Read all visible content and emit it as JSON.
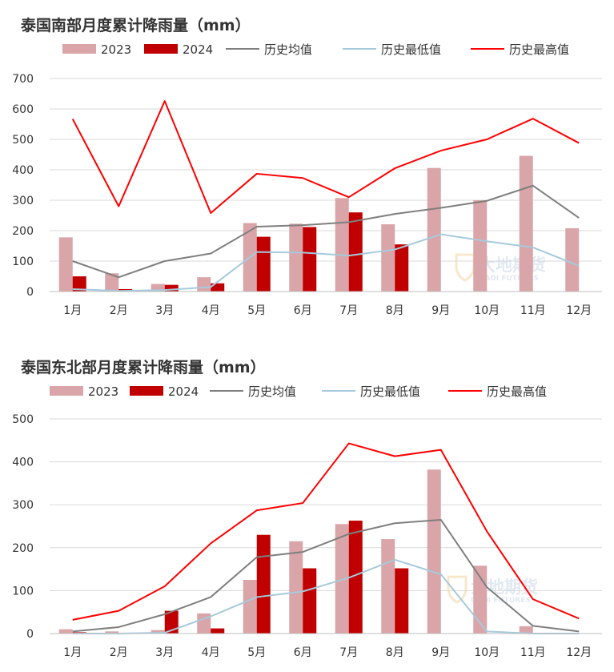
{
  "chart_data": [
    {
      "type": "bar",
      "title": "泰国南部月度累计降雨量（mm）",
      "categories": [
        "1月",
        "2月",
        "3月",
        "4月",
        "5月",
        "6月",
        "7月",
        "8月",
        "9月",
        "10月",
        "11月",
        "12月"
      ],
      "ylim": [
        0,
        700
      ],
      "yticks": [
        0,
        100,
        200,
        300,
        400,
        500,
        600,
        700
      ],
      "grid": true,
      "legend_position": "top",
      "series": [
        {
          "name": "2023",
          "kind": "bar",
          "color": "#d9a5a8",
          "values": [
            178,
            60,
            25,
            47,
            225,
            223,
            307,
            221,
            406,
            300,
            446,
            208
          ]
        },
        {
          "name": "2024",
          "kind": "bar",
          "color": "#c00000",
          "values": [
            50,
            8,
            22,
            27,
            180,
            212,
            260,
            155,
            null,
            null,
            null,
            null
          ]
        },
        {
          "name": "历史均值",
          "kind": "line",
          "color": "#7f7f7f",
          "values": [
            100,
            47,
            100,
            125,
            213,
            218,
            228,
            255,
            275,
            298,
            348,
            242
          ]
        },
        {
          "name": "历史最低值",
          "kind": "line",
          "color": "#a6cadb",
          "values": [
            8,
            2,
            5,
            15,
            130,
            128,
            118,
            138,
            188,
            165,
            145,
            85
          ]
        },
        {
          "name": "历史最高值",
          "kind": "line",
          "color": "#ff0000",
          "values": [
            567,
            280,
            626,
            258,
            387,
            373,
            310,
            405,
            463,
            500,
            568,
            488
          ]
        }
      ]
    },
    {
      "type": "bar",
      "title": "泰国东北部月度累计降雨量（mm）",
      "categories": [
        "1月",
        "2月",
        "3月",
        "4月",
        "5月",
        "6月",
        "7月",
        "8月",
        "9月",
        "10月",
        "11月",
        "12月"
      ],
      "ylim": [
        0,
        500
      ],
      "yticks": [
        0,
        100,
        200,
        300,
        400,
        500
      ],
      "grid": true,
      "legend_position": "top",
      "series": [
        {
          "name": "2023",
          "kind": "bar",
          "color": "#d9a5a8",
          "values": [
            10,
            5,
            8,
            47,
            125,
            215,
            255,
            220,
            382,
            158,
            17,
            0
          ]
        },
        {
          "name": "2024",
          "kind": "bar",
          "color": "#c00000",
          "values": [
            3,
            0,
            53,
            12,
            230,
            152,
            263,
            152,
            null,
            null,
            null,
            null
          ]
        },
        {
          "name": "历史均值",
          "kind": "line",
          "color": "#7f7f7f",
          "values": [
            5,
            15,
            45,
            85,
            178,
            190,
            232,
            257,
            265,
            108,
            18,
            5
          ]
        },
        {
          "name": "历史最低值",
          "kind": "line",
          "color": "#a6cadb",
          "values": [
            0,
            0,
            2,
            40,
            85,
            98,
            130,
            172,
            138,
            5,
            0,
            0
          ]
        },
        {
          "name": "历史最高值",
          "kind": "line",
          "color": "#ff0000",
          "values": [
            32,
            53,
            110,
            210,
            287,
            304,
            443,
            413,
            428,
            238,
            80,
            35
          ]
        }
      ]
    }
  ],
  "watermark": {
    "text": "大地期货",
    "sub": "DADI FUTURES",
    "icon": "shield-logo-icon"
  }
}
